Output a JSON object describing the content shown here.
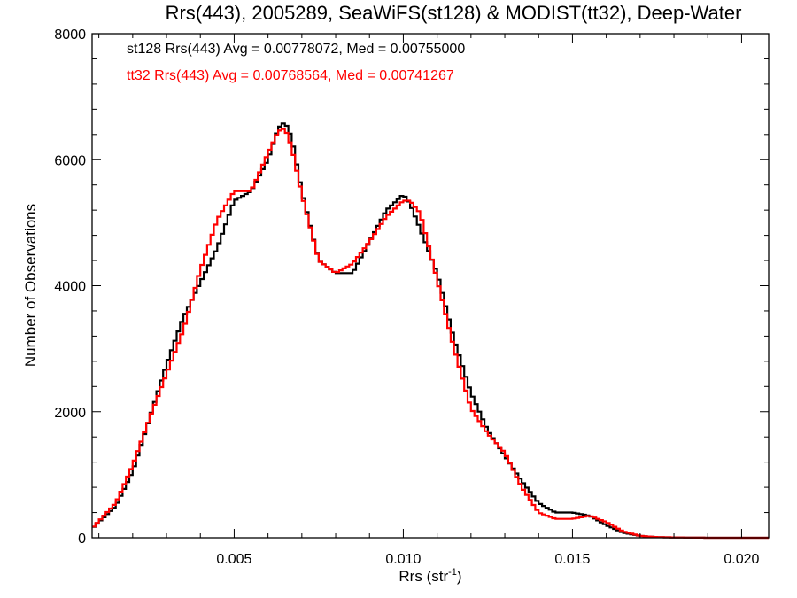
{
  "chart_data": {
    "type": "line",
    "title": "Rrs(443), 2005289, SeaWiFS(st128) & MODIST(tt32), Deep-Water",
    "xlabel": "Rrs (str",
    "xlabel_sup": "-1",
    "xlabel_close": ")",
    "ylabel": "Number of Observations",
    "xlim": [
      0.0008,
      0.0208
    ],
    "ylim": [
      0,
      8000
    ],
    "x_ticks": [
      0.005,
      0.01,
      0.015,
      0.02
    ],
    "x_tick_labels": [
      "0.005",
      "0.010",
      "0.015",
      "0.020"
    ],
    "y_ticks": [
      0,
      2000,
      4000,
      6000,
      8000
    ],
    "y_tick_labels": [
      "0",
      "2000",
      "4000",
      "6000",
      "8000"
    ],
    "grid": false,
    "step": true,
    "annotations": [
      {
        "text": "st128 Rrs(443) Avg = 0.00778072, Med = 0.00755000",
        "color": "#000000"
      },
      {
        "text": "tt32 Rrs(443) Avg = 0.00768564, Med = 0.00741267",
        "color": "#ff0000"
      }
    ],
    "series": [
      {
        "color": "#000000",
        "x": [
          0.0008,
          0.0015,
          0.002,
          0.0025,
          0.003,
          0.0035,
          0.004,
          0.0045,
          0.005,
          0.0055,
          0.006,
          0.0063,
          0.0065,
          0.0067,
          0.007,
          0.0075,
          0.008,
          0.0085,
          0.009,
          0.0095,
          0.01,
          0.0102,
          0.0105,
          0.011,
          0.0115,
          0.012,
          0.0125,
          0.013,
          0.0135,
          0.014,
          0.0145,
          0.015,
          0.0155,
          0.016,
          0.0165,
          0.017,
          0.0175,
          0.018,
          0.019,
          0.02,
          0.0208
        ],
        "y": [
          150,
          500,
          1050,
          1900,
          2750,
          3500,
          4050,
          4600,
          5350,
          5500,
          6000,
          6500,
          6600,
          6350,
          5500,
          4400,
          4200,
          4200,
          4700,
          5200,
          5450,
          5300,
          4900,
          4200,
          3150,
          2300,
          1700,
          1300,
          900,
          550,
          400,
          400,
          350,
          200,
          80,
          30,
          10,
          5,
          0,
          0,
          0
        ]
      },
      {
        "color": "#ff0000",
        "x": [
          0.0008,
          0.0015,
          0.002,
          0.0025,
          0.003,
          0.0035,
          0.004,
          0.0045,
          0.005,
          0.0055,
          0.006,
          0.0063,
          0.0065,
          0.0067,
          0.007,
          0.0075,
          0.008,
          0.0085,
          0.009,
          0.0095,
          0.01,
          0.0102,
          0.0105,
          0.011,
          0.0115,
          0.012,
          0.0125,
          0.013,
          0.0135,
          0.014,
          0.0145,
          0.015,
          0.0155,
          0.016,
          0.0165,
          0.017,
          0.0175,
          0.018,
          0.019,
          0.02,
          0.0208
        ],
        "y": [
          150,
          550,
          1150,
          1900,
          2600,
          3300,
          4250,
          5050,
          5500,
          5500,
          6100,
          6450,
          6500,
          6200,
          5450,
          4400,
          4200,
          4350,
          4700,
          5100,
          5350,
          5350,
          5150,
          4100,
          3000,
          2050,
          1650,
          1350,
          800,
          400,
          300,
          300,
          350,
          250,
          100,
          30,
          10,
          5,
          0,
          0,
          0
        ]
      }
    ]
  }
}
